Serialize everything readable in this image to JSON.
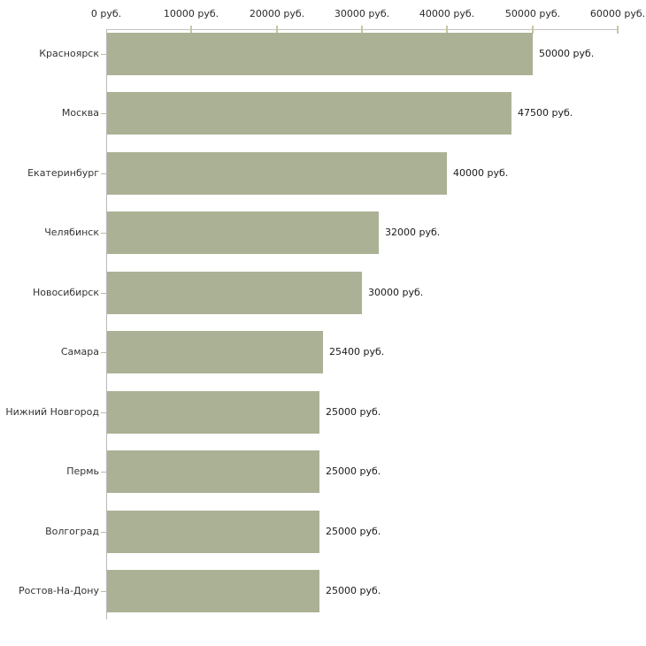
{
  "chart_data": {
    "type": "bar",
    "orientation": "horizontal",
    "title": "",
    "xlabel": "",
    "ylabel": "",
    "xlim": [
      0,
      60000
    ],
    "grid": false,
    "legend": false,
    "categories": [
      "Красноярск",
      "Москва",
      "Екатеринбург",
      "Челябинск",
      "Новосибирск",
      "Самара",
      "Нижний Новгород",
      "Пермь",
      "Волгоград",
      "Ростов-На-Дону"
    ],
    "values": [
      50000,
      47500,
      40000,
      32000,
      30000,
      25400,
      25000,
      25000,
      25000,
      25000
    ],
    "value_labels": [
      "50000 руб.",
      "47500 руб.",
      "40000 руб.",
      "32000 руб.",
      "30000 руб.",
      "25400 руб.",
      "25000 руб.",
      "25000 руб.",
      "25000 руб.",
      "25000 руб."
    ],
    "x_ticks": [
      {
        "value": 0,
        "label": "0 руб."
      },
      {
        "value": 10000,
        "label": "10000 руб."
      },
      {
        "value": 20000,
        "label": "20000 руб."
      },
      {
        "value": 30000,
        "label": "30000 руб."
      },
      {
        "value": 40000,
        "label": "40000 руб."
      },
      {
        "value": 50000,
        "label": "50000 руб."
      },
      {
        "value": 60000,
        "label": "60000 руб."
      }
    ],
    "colors": {
      "bar": "#abb194",
      "x_axis_line": "#c3c3c3",
      "y_axis_line": "#b9b9b9",
      "tick": "#c9c6a2",
      "text": "#2b2b2b"
    }
  }
}
